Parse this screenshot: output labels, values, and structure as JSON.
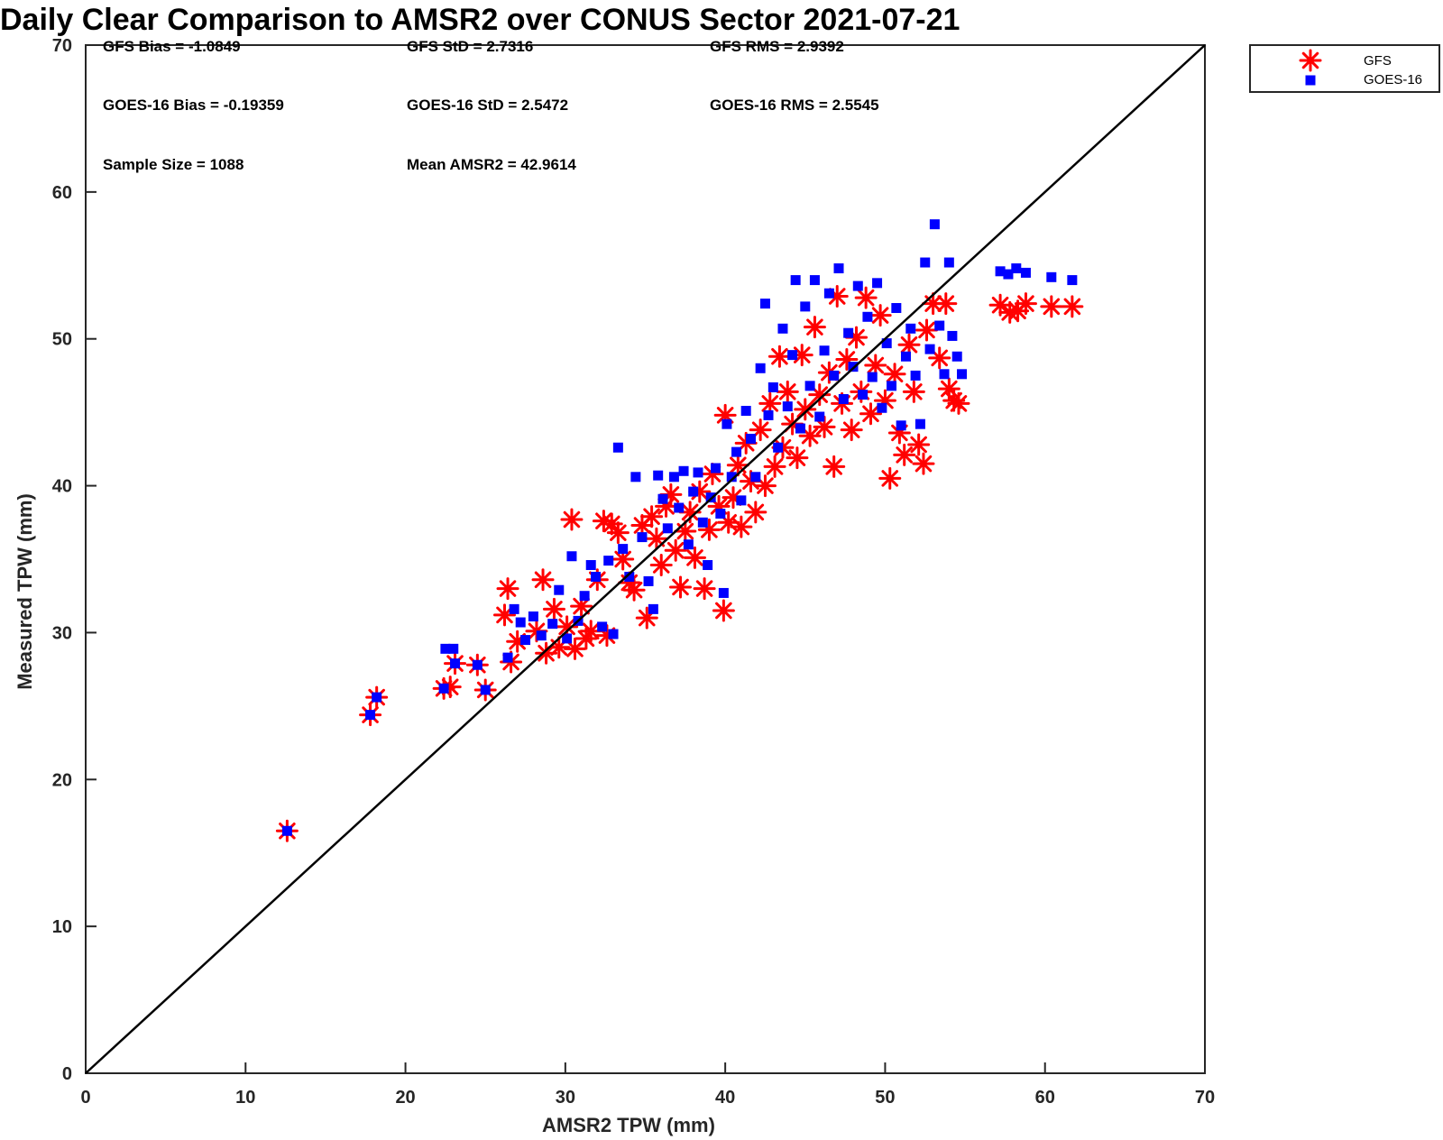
{
  "chart_data": {
    "type": "scatter",
    "title": "Daily Clear Comparison to AMSR2 over CONUS Sector 2021-07-21",
    "xlabel": "AMSR2 TPW (mm)",
    "ylabel": "Measured TPW (mm)",
    "xlim": [
      0,
      70
    ],
    "ylim": [
      0,
      70
    ],
    "x_ticks": [
      "0",
      "10",
      "20",
      "30",
      "40",
      "50",
      "60",
      "70"
    ],
    "y_ticks": [
      "0",
      "10",
      "20",
      "30",
      "40",
      "50",
      "60",
      "70"
    ],
    "grid": false,
    "legend_position": "top-right",
    "reference_line": {
      "x": [
        0,
        70
      ],
      "y": [
        0,
        70
      ],
      "color": "#000000"
    },
    "stats": [
      "GFS Bias = -1.0849",
      "GFS StD = 2.7316",
      "GFS RMS = 2.9392",
      "GOES-16 Bias = -0.19359",
      "GOES-16 StD = 2.5472",
      "GOES-16 RMS = 2.5545",
      "Sample Size = 1088",
      "Mean AMSR2 = 42.9614"
    ],
    "series": [
      {
        "name": "GFS",
        "marker": "asterisk",
        "color": "#ff0000",
        "points": [
          [
            12.6,
            16.5
          ],
          [
            17.8,
            24.4
          ],
          [
            18.2,
            25.6
          ],
          [
            22.4,
            26.2
          ],
          [
            22.8,
            26.3
          ],
          [
            23.1,
            27.9
          ],
          [
            24.5,
            27.8
          ],
          [
            25.0,
            26.1
          ],
          [
            26.2,
            31.2
          ],
          [
            26.4,
            33.0
          ],
          [
            26.6,
            28.0
          ],
          [
            27.0,
            29.4
          ],
          [
            28.2,
            30.1
          ],
          [
            28.6,
            33.6
          ],
          [
            28.8,
            28.6
          ],
          [
            29.3,
            31.6
          ],
          [
            29.6,
            29.0
          ],
          [
            30.1,
            30.4
          ],
          [
            30.4,
            37.7
          ],
          [
            30.6,
            28.9
          ],
          [
            31.0,
            31.8
          ],
          [
            31.3,
            29.6
          ],
          [
            31.6,
            30.1
          ],
          [
            32.0,
            33.6
          ],
          [
            32.4,
            37.6
          ],
          [
            32.6,
            29.8
          ],
          [
            32.9,
            37.4
          ],
          [
            33.3,
            36.8
          ],
          [
            33.6,
            35.0
          ],
          [
            34.0,
            33.4
          ],
          [
            34.3,
            32.9
          ],
          [
            34.8,
            37.3
          ],
          [
            35.1,
            31.0
          ],
          [
            35.4,
            37.9
          ],
          [
            35.7,
            36.4
          ],
          [
            36.0,
            34.6
          ],
          [
            36.3,
            38.6
          ],
          [
            36.6,
            39.4
          ],
          [
            36.9,
            35.6
          ],
          [
            37.2,
            33.1
          ],
          [
            37.5,
            36.9
          ],
          [
            37.8,
            38.2
          ],
          [
            38.1,
            35.1
          ],
          [
            38.4,
            39.6
          ],
          [
            38.7,
            33.0
          ],
          [
            39.0,
            37.0
          ],
          [
            39.2,
            40.8
          ],
          [
            39.6,
            38.6
          ],
          [
            39.9,
            31.5
          ],
          [
            40.0,
            44.8
          ],
          [
            40.2,
            37.5
          ],
          [
            40.5,
            39.2
          ],
          [
            40.8,
            41.4
          ],
          [
            41.0,
            37.2
          ],
          [
            41.3,
            42.9
          ],
          [
            41.6,
            40.3
          ],
          [
            41.9,
            38.2
          ],
          [
            42.2,
            43.8
          ],
          [
            42.5,
            40.0
          ],
          [
            42.8,
            45.6
          ],
          [
            43.1,
            41.3
          ],
          [
            43.4,
            48.8
          ],
          [
            43.6,
            42.6
          ],
          [
            43.9,
            46.4
          ],
          [
            44.2,
            44.2
          ],
          [
            44.5,
            41.9
          ],
          [
            44.8,
            48.9
          ],
          [
            45.0,
            45.2
          ],
          [
            45.3,
            43.4
          ],
          [
            45.6,
            50.8
          ],
          [
            45.9,
            46.2
          ],
          [
            46.2,
            44.0
          ],
          [
            46.5,
            47.7
          ],
          [
            46.8,
            41.3
          ],
          [
            47.0,
            52.9
          ],
          [
            47.3,
            45.6
          ],
          [
            47.6,
            48.6
          ],
          [
            47.9,
            43.8
          ],
          [
            48.2,
            50.1
          ],
          [
            48.5,
            46.4
          ],
          [
            48.8,
            52.8
          ],
          [
            49.1,
            44.9
          ],
          [
            49.4,
            48.2
          ],
          [
            49.7,
            51.6
          ],
          [
            50.0,
            45.8
          ],
          [
            50.3,
            40.5
          ],
          [
            50.6,
            47.6
          ],
          [
            50.9,
            43.6
          ],
          [
            51.2,
            42.1
          ],
          [
            51.5,
            49.6
          ],
          [
            51.8,
            46.4
          ],
          [
            52.1,
            42.8
          ],
          [
            52.4,
            41.5
          ],
          [
            52.6,
            50.6
          ],
          [
            53.0,
            52.4
          ],
          [
            53.4,
            48.7
          ],
          [
            53.8,
            52.4
          ],
          [
            54.0,
            46.6
          ],
          [
            54.3,
            45.8
          ],
          [
            54.6,
            45.6
          ],
          [
            57.2,
            52.3
          ],
          [
            57.8,
            51.8
          ],
          [
            58.3,
            51.9
          ],
          [
            58.8,
            52.4
          ],
          [
            60.4,
            52.2
          ],
          [
            61.7,
            52.2
          ]
        ]
      },
      {
        "name": "GOES-16",
        "marker": "square",
        "color": "#0000ff",
        "points": [
          [
            12.6,
            16.5
          ],
          [
            17.8,
            24.4
          ],
          [
            18.2,
            25.6
          ],
          [
            22.4,
            26.2
          ],
          [
            22.5,
            28.9
          ],
          [
            23.1,
            27.9
          ],
          [
            23.0,
            28.9
          ],
          [
            24.5,
            27.8
          ],
          [
            25.0,
            26.1
          ],
          [
            26.4,
            28.3
          ],
          [
            26.8,
            31.6
          ],
          [
            27.2,
            30.7
          ],
          [
            27.5,
            29.5
          ],
          [
            28.0,
            31.1
          ],
          [
            28.5,
            29.8
          ],
          [
            29.2,
            30.6
          ],
          [
            29.6,
            32.9
          ],
          [
            30.1,
            29.6
          ],
          [
            30.4,
            35.2
          ],
          [
            30.8,
            30.8
          ],
          [
            31.2,
            32.5
          ],
          [
            31.6,
            34.6
          ],
          [
            31.9,
            33.8
          ],
          [
            32.3,
            30.4
          ],
          [
            32.7,
            34.9
          ],
          [
            33.0,
            29.9
          ],
          [
            33.3,
            42.6
          ],
          [
            33.6,
            35.7
          ],
          [
            34.0,
            33.8
          ],
          [
            34.4,
            40.6
          ],
          [
            34.8,
            36.5
          ],
          [
            35.2,
            33.5
          ],
          [
            35.5,
            31.6
          ],
          [
            35.8,
            40.7
          ],
          [
            36.1,
            39.1
          ],
          [
            36.4,
            37.1
          ],
          [
            36.8,
            40.6
          ],
          [
            37.1,
            38.5
          ],
          [
            37.4,
            41.0
          ],
          [
            37.7,
            36.0
          ],
          [
            38.0,
            39.6
          ],
          [
            38.3,
            40.9
          ],
          [
            38.6,
            37.5
          ],
          [
            38.9,
            34.6
          ],
          [
            39.1,
            39.2
          ],
          [
            39.4,
            41.2
          ],
          [
            39.7,
            38.1
          ],
          [
            39.9,
            32.7
          ],
          [
            40.1,
            44.2
          ],
          [
            40.4,
            40.6
          ],
          [
            40.7,
            42.3
          ],
          [
            41.0,
            39.0
          ],
          [
            41.3,
            45.1
          ],
          [
            41.6,
            43.2
          ],
          [
            41.9,
            40.6
          ],
          [
            42.2,
            48.0
          ],
          [
            42.5,
            52.4
          ],
          [
            42.7,
            44.8
          ],
          [
            43.0,
            46.7
          ],
          [
            43.3,
            42.6
          ],
          [
            43.6,
            50.7
          ],
          [
            43.9,
            45.4
          ],
          [
            44.2,
            48.9
          ],
          [
            44.4,
            54.0
          ],
          [
            44.7,
            43.9
          ],
          [
            45.0,
            52.2
          ],
          [
            45.3,
            46.8
          ],
          [
            45.6,
            54.0
          ],
          [
            45.9,
            44.7
          ],
          [
            46.2,
            49.2
          ],
          [
            46.5,
            53.1
          ],
          [
            46.8,
            47.5
          ],
          [
            47.1,
            54.8
          ],
          [
            47.4,
            45.9
          ],
          [
            47.7,
            50.4
          ],
          [
            48.0,
            48.1
          ],
          [
            48.3,
            53.6
          ],
          [
            48.6,
            46.2
          ],
          [
            48.9,
            51.5
          ],
          [
            49.2,
            47.4
          ],
          [
            49.5,
            53.8
          ],
          [
            49.8,
            45.3
          ],
          [
            50.1,
            49.7
          ],
          [
            50.4,
            46.8
          ],
          [
            50.7,
            52.1
          ],
          [
            51.0,
            44.1
          ],
          [
            51.3,
            48.8
          ],
          [
            51.6,
            50.7
          ],
          [
            51.9,
            47.5
          ],
          [
            52.2,
            44.2
          ],
          [
            52.5,
            55.2
          ],
          [
            52.8,
            49.3
          ],
          [
            53.1,
            57.8
          ],
          [
            53.4,
            50.9
          ],
          [
            53.7,
            47.6
          ],
          [
            54.0,
            55.2
          ],
          [
            54.2,
            50.2
          ],
          [
            54.5,
            48.8
          ],
          [
            54.8,
            47.6
          ],
          [
            57.2,
            54.6
          ],
          [
            57.7,
            54.4
          ],
          [
            58.2,
            54.8
          ],
          [
            58.8,
            54.5
          ],
          [
            60.4,
            54.2
          ],
          [
            61.7,
            54.0
          ]
        ]
      }
    ]
  }
}
